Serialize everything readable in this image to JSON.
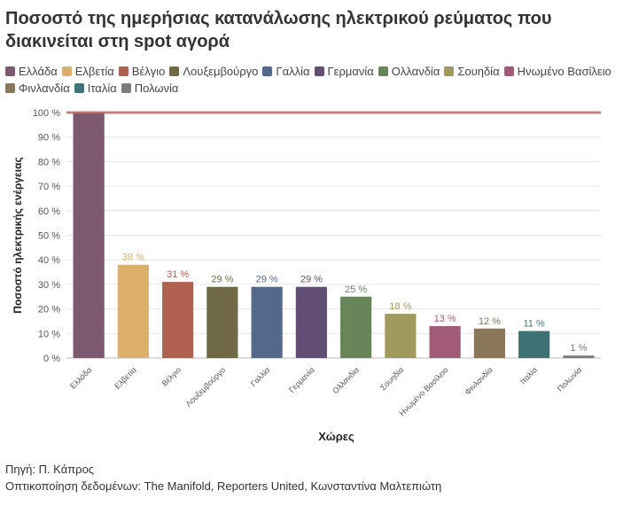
{
  "title": "Ποσοστό της ημερήσιας κατανάλωσης ηλεκτρικού ρεύματος που διακινείται στη spot αγορά",
  "footer": {
    "source": "Πηγή: Π. Κάπρος",
    "credit": "Οπτικοποίηση δεδομένων: The Manifold, Reporters United, Κωνσταντίνα Μαλτεπιώτη"
  },
  "chart_data": {
    "type": "bar",
    "xlabel": "Χώρες",
    "ylabel": "Ποσοστό ηλεκτρικής ενέργειας",
    "ylim": [
      0,
      100
    ],
    "yticks": [
      0,
      10,
      20,
      30,
      40,
      50,
      60,
      70,
      80,
      90,
      100
    ],
    "ytick_suffix": " %",
    "grid": true,
    "legend_position": "top",
    "reference_line": {
      "value": 100,
      "color": "#c0605e"
    },
    "categories": [
      "Ελλάδα",
      "Ελβετία",
      "Βέλγιο",
      "Λουξεμβούργο",
      "Γαλλία",
      "Γερμανία",
      "Ολλανδία",
      "Σουηδία",
      "Ηνωμένο Βασίλειο",
      "Φινλανδία",
      "Ιταλία",
      "Πολωνία"
    ],
    "values": [
      100,
      38,
      31,
      29,
      29,
      29,
      25,
      18,
      13,
      12,
      11,
      1
    ],
    "value_labels": [
      "",
      "38 %",
      "31 %",
      "29 %",
      "29 %",
      "29 %",
      "25 %",
      "18 %",
      "13 %",
      "12 %",
      "11 %",
      "1 %"
    ],
    "colors": [
      "#7e5870",
      "#dcb069",
      "#b0604f",
      "#6f6a45",
      "#54698a",
      "#624e74",
      "#68855a",
      "#a09a5c",
      "#a25b77",
      "#8a7659",
      "#3f7276",
      "#7b7b7b"
    ]
  }
}
